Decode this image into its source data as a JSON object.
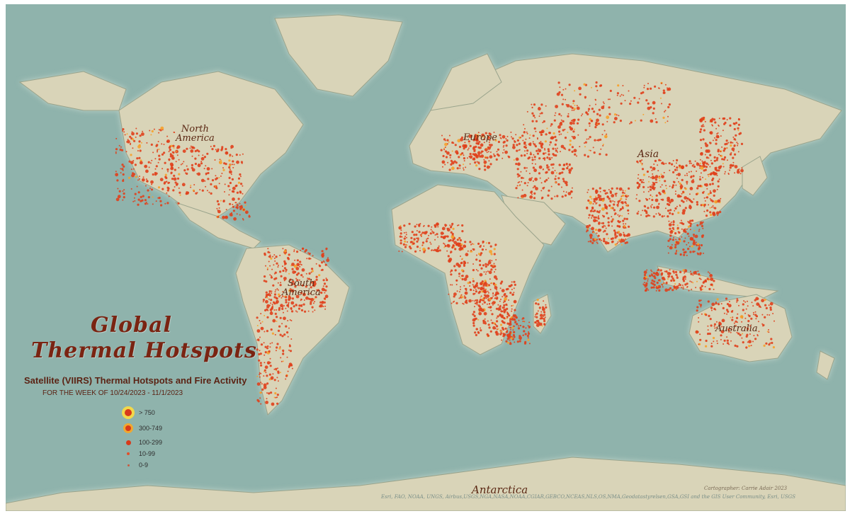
{
  "title": {
    "line1": "Global",
    "line2": "Thermal Hotspots"
  },
  "subtitle": "Satellite (VIIRS) Thermal Hotspots and Fire Activity",
  "date_range": "FOR THE WEEK OF 10/24/2023 - 11/1/2023",
  "legend": [
    {
      "label": "> 750",
      "color": "#d8301a",
      "halo": "#f2d84a"
    },
    {
      "label": "300-749",
      "color": "#d8301a",
      "halo": "#f0a830"
    },
    {
      "label": "100-299",
      "color": "#e2401c",
      "halo": null
    },
    {
      "label": "10-99",
      "color": "#e2502a",
      "halo": null
    },
    {
      "label": "0-9",
      "color": "#c85a40",
      "halo": null
    }
  ],
  "continent_labels": {
    "north_america": [
      "North",
      "America"
    ],
    "south_america": [
      "South",
      "America"
    ],
    "europe": "Europe",
    "asia": "Asia",
    "australia": "Australia",
    "antarctica": "Antarctica"
  },
  "cartographer": "Cartographer: Carrie Adair 2023",
  "credits": "Esri, FAO, NOAA, UNGS, Airbus,USGS,NGA,NASA,NOAA,CGIAR,GEBCO,NCEAS,NLS,OS,NMA,Geodatastyrelsen,GSA,GSI and the GIS User Community, Esri, USGS",
  "colors": {
    "ocean": "#8fb3ac",
    "land": "#d9d4b8",
    "coast_glow": "#b9cfc4",
    "hotspot": "#e0401c",
    "hotspot_hot": "#f6a12a",
    "title": "#7a2412"
  }
}
